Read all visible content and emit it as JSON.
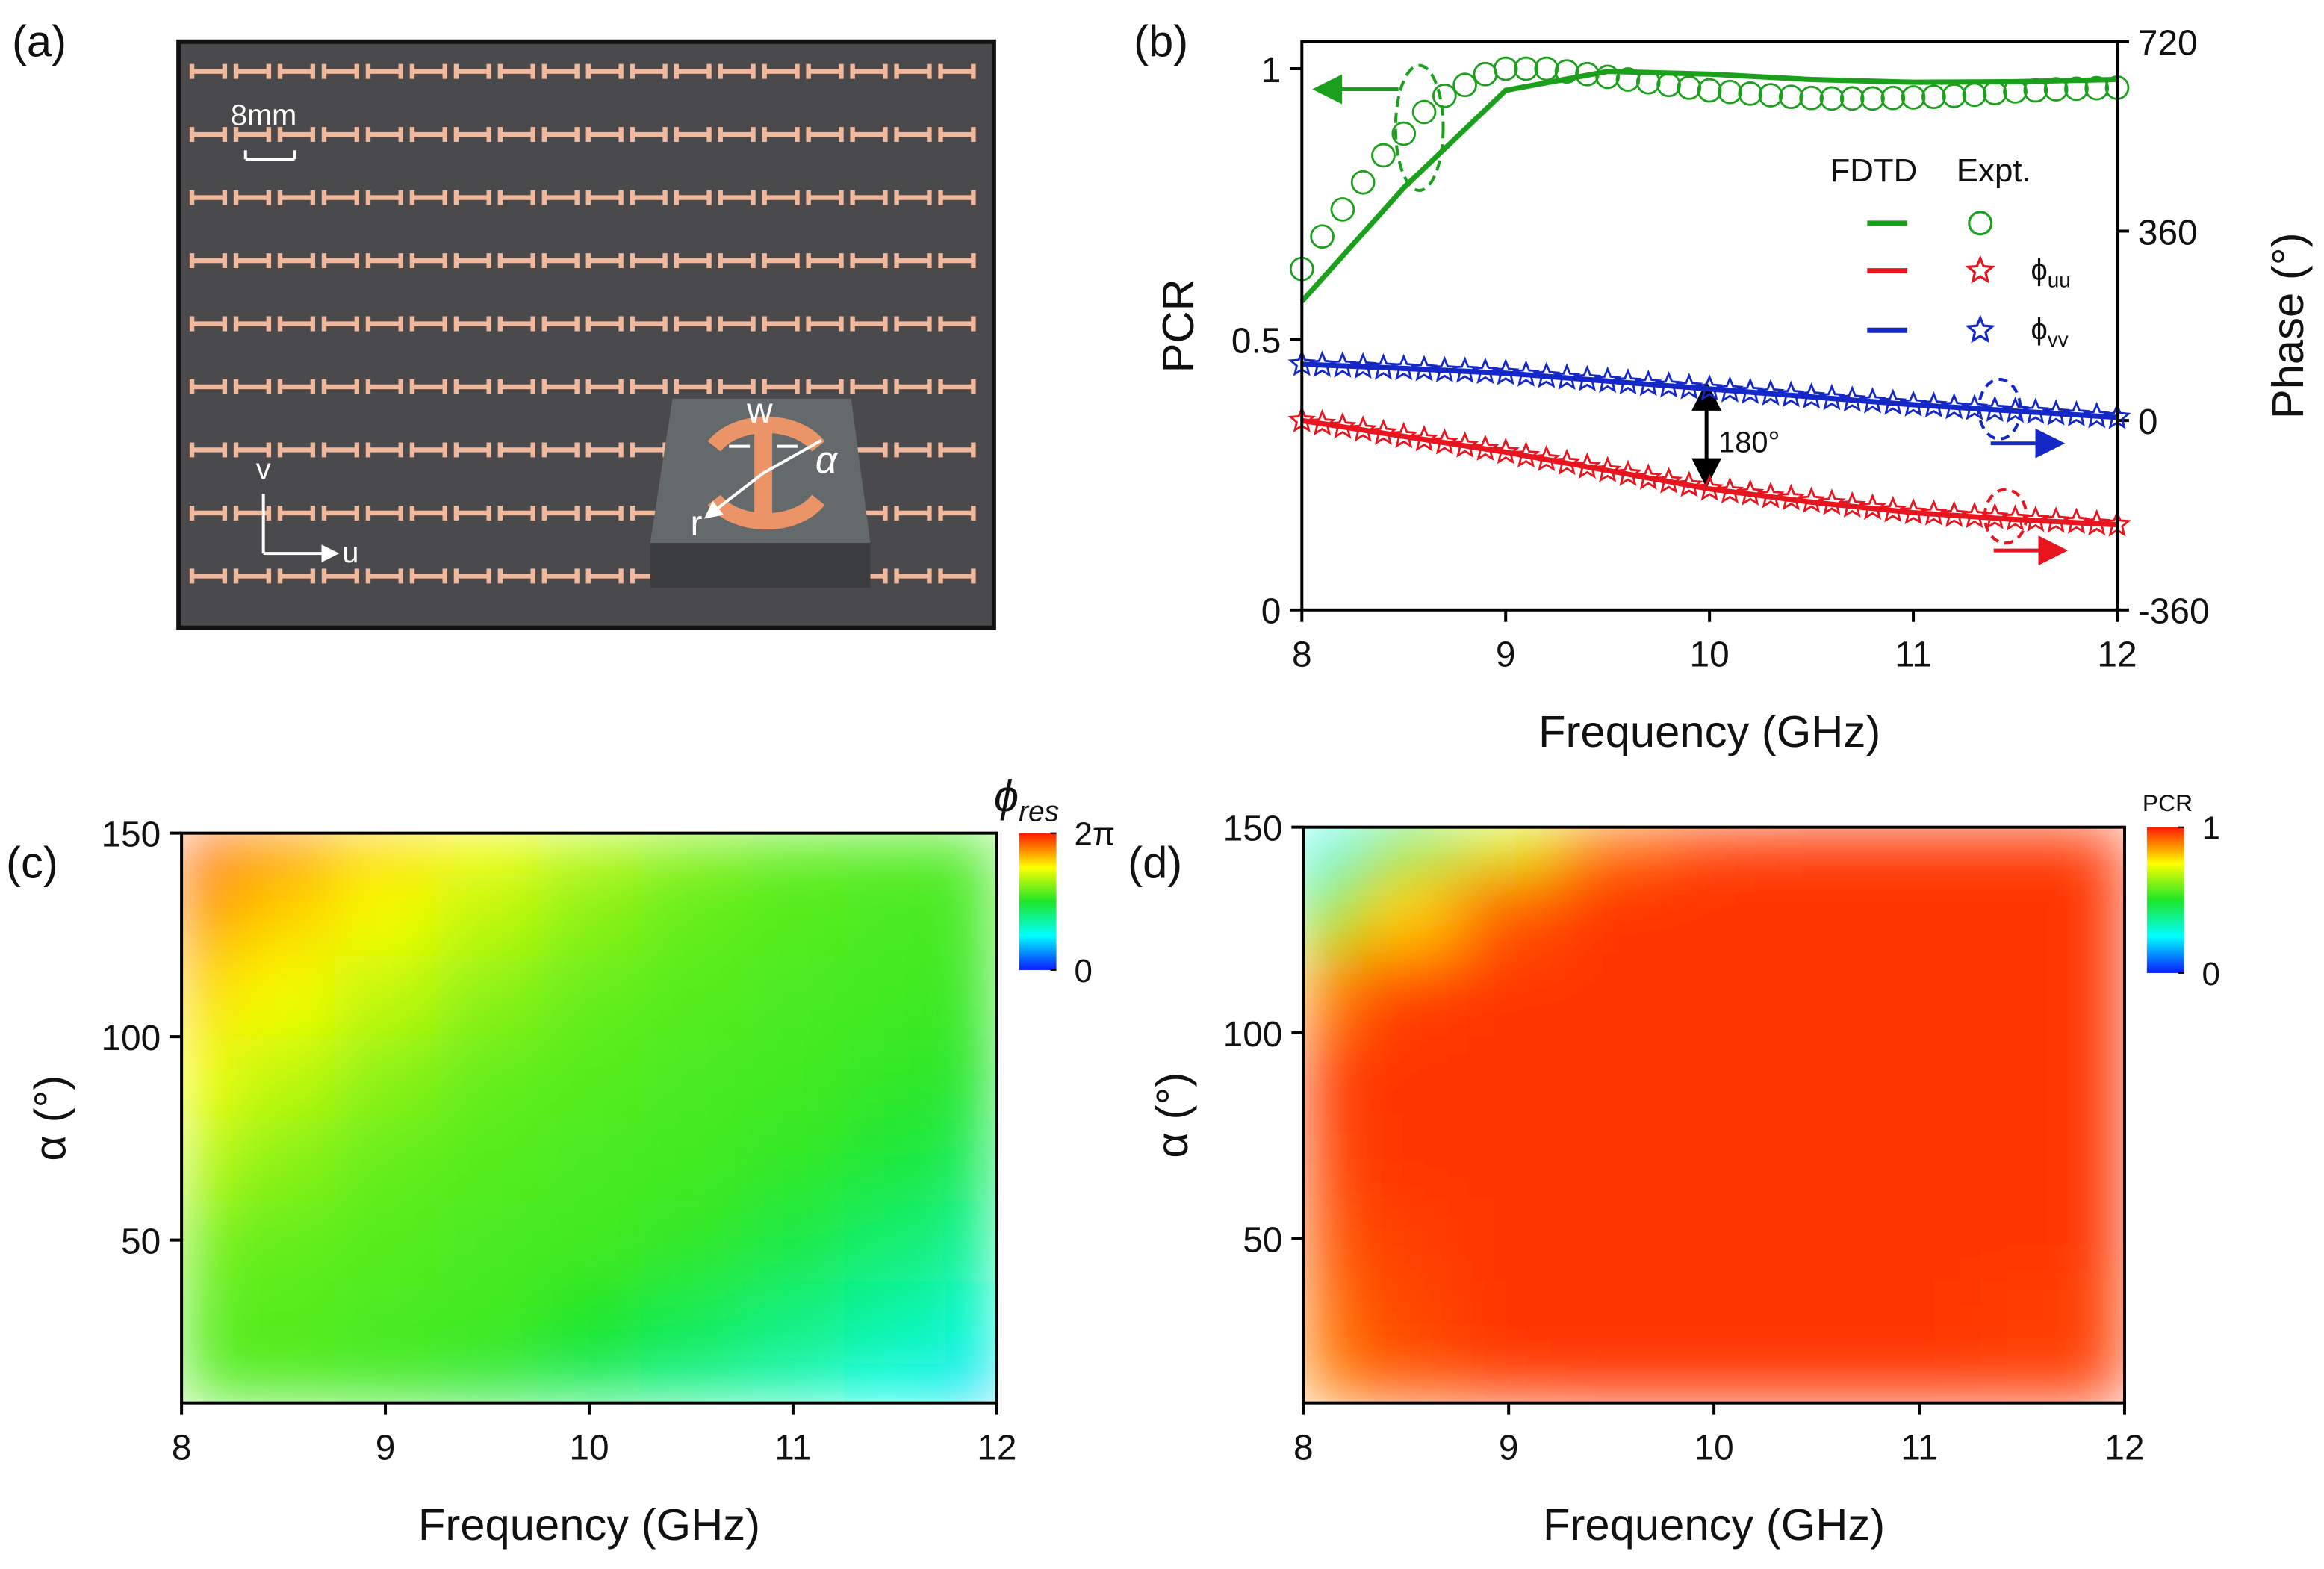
{
  "panel_a": {
    "label": "(a)",
    "scale_bar": "8mm",
    "axis_v": "v",
    "axis_u": "u",
    "inset_labels": [
      "w",
      "α",
      "r"
    ]
  },
  "chart_data": [
    {
      "type": "line",
      "panel_label": "(b)",
      "xlabel": "Frequency (GHz)",
      "ylabel": "PCR",
      "y2label": "Phase (°)",
      "xlim": [
        8,
        12
      ],
      "xticks": [
        8,
        9,
        10,
        11,
        12
      ],
      "ylim": [
        0,
        1.05
      ],
      "yticks": [
        0,
        0.5,
        1
      ],
      "y2lim": [
        -360,
        720
      ],
      "y2ticks": [
        -360,
        0,
        360,
        720
      ],
      "legend": {
        "headers": [
          "FDTD",
          "Expt."
        ]
      },
      "annotations": [
        "180°"
      ],
      "series": [
        {
          "kind": "line",
          "color": "#1aa01a",
          "x": [
            8,
            8.5,
            9,
            9.5,
            10,
            10.5,
            11,
            11.5,
            12
          ],
          "values": [
            0.57,
            0.78,
            0.96,
            0.995,
            0.99,
            0.98,
            0.975,
            0.976,
            0.98
          ]
        },
        {
          "kind": "circle",
          "color": "#1aa01a",
          "x": [
            8,
            8.1,
            8.2,
            8.3,
            8.4,
            8.5,
            8.6,
            8.7,
            8.8,
            8.9,
            9,
            9.1,
            9.2,
            9.3,
            9.4,
            9.5,
            9.6,
            9.7,
            9.8,
            9.9,
            10,
            10.1,
            10.2,
            10.3,
            10.4,
            10.5,
            10.6,
            10.7,
            10.8,
            10.9,
            11,
            11.1,
            11.2,
            11.3,
            11.4,
            11.5,
            11.6,
            11.7,
            11.8,
            11.9,
            12
          ],
          "values": [
            0.63,
            0.69,
            0.74,
            0.79,
            0.84,
            0.88,
            0.92,
            0.95,
            0.97,
            0.99,
            1.0,
            1.0,
            1.0,
            0.995,
            0.99,
            0.985,
            0.98,
            0.975,
            0.97,
            0.965,
            0.96,
            0.957,
            0.954,
            0.951,
            0.948,
            0.946,
            0.945,
            0.945,
            0.945,
            0.946,
            0.947,
            0.948,
            0.95,
            0.952,
            0.955,
            0.958,
            0.96,
            0.962,
            0.963,
            0.964,
            0.965
          ]
        },
        {
          "kind": "line",
          "axis": "y2",
          "color": "#e8141e",
          "x": [
            8,
            8.5,
            9,
            9.5,
            10,
            10.5,
            11,
            11.5,
            12
          ],
          "values": [
            0,
            -30,
            -60,
            -95,
            -130,
            -155,
            -175,
            -188,
            -198
          ]
        },
        {
          "kind": "star",
          "axis": "y2",
          "name": "ϕuu",
          "color": "#e8141e",
          "x": [
            8,
            8.1,
            8.2,
            8.3,
            8.4,
            8.5,
            8.6,
            8.7,
            8.8,
            8.9,
            9,
            9.1,
            9.2,
            9.3,
            9.4,
            9.5,
            9.6,
            9.7,
            9.8,
            9.9,
            10,
            10.1,
            10.2,
            10.3,
            10.4,
            10.5,
            10.6,
            10.7,
            10.8,
            10.9,
            11,
            11.1,
            11.2,
            11.3,
            11.4,
            11.5,
            11.6,
            11.7,
            11.8,
            11.9,
            12
          ],
          "values": [
            0,
            -6,
            -12,
            -18,
            -24,
            -30,
            -36,
            -42,
            -48,
            -54,
            -60,
            -67,
            -74,
            -81,
            -88,
            -95,
            -102,
            -109,
            -116,
            -123,
            -130,
            -135,
            -139,
            -144,
            -148,
            -153,
            -157,
            -162,
            -166,
            -171,
            -175,
            -177,
            -180,
            -182,
            -184,
            -187,
            -189,
            -191,
            -193,
            -196,
            -198
          ]
        },
        {
          "kind": "line",
          "axis": "y2",
          "color": "#1428c8",
          "x": [
            8,
            8.5,
            9,
            9.5,
            10,
            10.5,
            11,
            11.5,
            12
          ],
          "values": [
            107,
            99,
            90,
            75,
            60,
            45,
            30,
            18,
            6
          ]
        },
        {
          "kind": "star",
          "axis": "y2",
          "name": "ϕvv",
          "color": "#1428c8",
          "x": [
            8,
            8.1,
            8.2,
            8.3,
            8.4,
            8.5,
            8.6,
            8.7,
            8.8,
            8.9,
            9,
            9.1,
            9.2,
            9.3,
            9.4,
            9.5,
            9.6,
            9.7,
            9.8,
            9.9,
            10,
            10.1,
            10.2,
            10.3,
            10.4,
            10.5,
            10.6,
            10.7,
            10.8,
            10.9,
            11,
            11.1,
            11.2,
            11.3,
            11.4,
            11.5,
            11.6,
            11.7,
            11.8,
            11.9,
            12
          ],
          "values": [
            107,
            105,
            104,
            102,
            100,
            99,
            97,
            95,
            94,
            92,
            90,
            87,
            84,
            81,
            78,
            75,
            72,
            69,
            66,
            63,
            60,
            57,
            54,
            51,
            48,
            45,
            42,
            39,
            36,
            33,
            30,
            28,
            25,
            23,
            20,
            18,
            16,
            13,
            11,
            8,
            6
          ]
        }
      ]
    },
    {
      "type": "heatmap",
      "panel_label": "(c)",
      "xlabel": "Frequency (GHz)",
      "ylabel": "α (°)",
      "xlim": [
        8,
        12
      ],
      "xticks": [
        8,
        9,
        10,
        11,
        12
      ],
      "ylim": [
        10,
        150
      ],
      "yticks": [
        50,
        100,
        150
      ],
      "x": [
        8,
        8.5,
        9,
        9.5,
        10,
        10.5,
        11,
        11.5,
        12
      ],
      "y": [
        10,
        30,
        50,
        70,
        90,
        110,
        130,
        150
      ],
      "z": [
        [
          3.52,
          3.46,
          3.33,
          3.02,
          2.7,
          2.39,
          2.07,
          1.7,
          1.26
        ],
        [
          3.58,
          3.52,
          3.46,
          3.39,
          3.14,
          2.83,
          2.51,
          2.2,
          1.88
        ],
        [
          3.77,
          3.64,
          3.52,
          3.46,
          3.39,
          3.27,
          2.95,
          2.64,
          2.32
        ],
        [
          4.27,
          3.9,
          3.64,
          3.52,
          3.46,
          3.39,
          3.27,
          3.02,
          2.76
        ],
        [
          4.65,
          4.27,
          3.9,
          3.64,
          3.52,
          3.46,
          3.39,
          3.27,
          3.14
        ],
        [
          5.03,
          4.65,
          4.27,
          3.9,
          3.64,
          3.52,
          3.46,
          3.39,
          3.27
        ],
        [
          5.53,
          5.03,
          4.65,
          4.27,
          3.9,
          3.64,
          3.52,
          3.46,
          3.39
        ],
        [
          5.97,
          5.53,
          5.03,
          4.65,
          4.27,
          3.9,
          3.64,
          3.52,
          3.46
        ]
      ],
      "colormap": [
        "#0a1aff",
        "#00ffff",
        "#1ee628",
        "#ffff00",
        "#ff1a00"
      ],
      "colorbar": {
        "title": "ϕres",
        "clim": [
          0,
          6.283
        ],
        "ticks": [
          0,
          {
            "value": 6.283,
            "label": "2π"
          }
        ]
      }
    },
    {
      "type": "heatmap",
      "panel_label": "(d)",
      "xlabel": "Frequency (GHz)",
      "ylabel": "α (°)",
      "xlim": [
        8,
        12
      ],
      "xticks": [
        8,
        9,
        10,
        11,
        12
      ],
      "ylim": [
        10,
        150
      ],
      "yticks": [
        50,
        100,
        150
      ],
      "x": [
        8,
        8.5,
        9,
        9.5,
        10,
        10.5,
        11,
        11.5,
        12
      ],
      "y": [
        10,
        30,
        50,
        70,
        90,
        110,
        130,
        150
      ],
      "z": [
        [
          0.88,
          0.93,
          0.96,
          0.97,
          0.97,
          0.97,
          0.97,
          0.97,
          0.97
        ],
        [
          0.9,
          0.95,
          0.97,
          0.97,
          0.97,
          0.97,
          0.97,
          0.96,
          0.96
        ],
        [
          0.93,
          0.96,
          0.97,
          0.97,
          0.97,
          0.97,
          0.97,
          0.97,
          0.97
        ],
        [
          0.95,
          0.97,
          0.97,
          0.97,
          0.97,
          0.97,
          0.97,
          0.97,
          0.97
        ],
        [
          0.96,
          0.97,
          0.97,
          0.97,
          0.97,
          0.97,
          0.97,
          0.97,
          0.97
        ],
        [
          0.88,
          0.96,
          0.97,
          0.97,
          0.97,
          0.97,
          0.97,
          0.97,
          0.97
        ],
        [
          0.55,
          0.8,
          0.93,
          0.97,
          0.97,
          0.97,
          0.97,
          0.97,
          0.97
        ],
        [
          0.25,
          0.45,
          0.7,
          0.9,
          0.96,
          0.97,
          0.97,
          0.97,
          0.97
        ]
      ],
      "colormap": [
        "#0a1aff",
        "#00ffff",
        "#1ee628",
        "#ffff00",
        "#ff1a00"
      ],
      "colorbar": {
        "title": "PCR",
        "clim": [
          0,
          1
        ],
        "ticks": [
          0,
          1
        ]
      }
    }
  ]
}
